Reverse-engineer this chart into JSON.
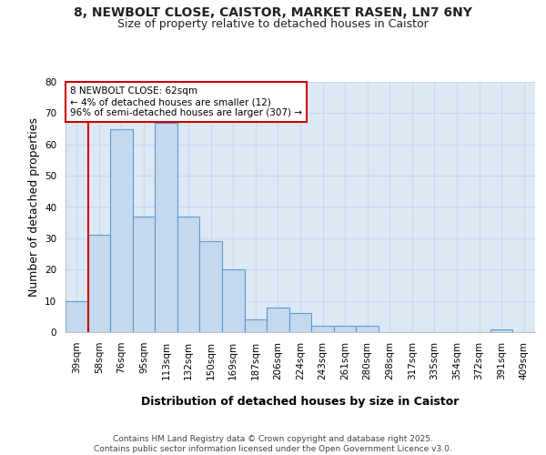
{
  "title1": "8, NEWBOLT CLOSE, CAISTOR, MARKET RASEN, LN7 6NY",
  "title2": "Size of property relative to detached houses in Caistor",
  "xlabel": "Distribution of detached houses by size in Caistor",
  "ylabel": "Number of detached properties",
  "categories": [
    "39sqm",
    "58sqm",
    "76sqm",
    "95sqm",
    "113sqm",
    "132sqm",
    "150sqm",
    "169sqm",
    "187sqm",
    "206sqm",
    "224sqm",
    "243sqm",
    "261sqm",
    "280sqm",
    "298sqm",
    "317sqm",
    "335sqm",
    "354sqm",
    "372sqm",
    "391sqm",
    "409sqm"
  ],
  "values": [
    10,
    31,
    65,
    37,
    67,
    37,
    29,
    20,
    4,
    8,
    6,
    2,
    2,
    2,
    0,
    0,
    0,
    0,
    0,
    1,
    0
  ],
  "bar_color": "#c5d8ed",
  "bar_edge_color": "#5b9bd5",
  "subject_bin_index": 1,
  "subject_line_color": "#cc0000",
  "annotation_text": "8 NEWBOLT CLOSE: 62sqm\n← 4% of detached houses are smaller (12)\n96% of semi-detached houses are larger (307) →",
  "annotation_box_color": "#ffffff",
  "annotation_box_edge_color": "#cc0000",
  "ylim": [
    0,
    80
  ],
  "yticks": [
    0,
    10,
    20,
    30,
    40,
    50,
    60,
    70,
    80
  ],
  "background_color": "#dce9f5",
  "plot_bg_color": "#ffffff",
  "grid_color": "#c8d8e8",
  "footer_text": "Contains HM Land Registry data © Crown copyright and database right 2025.\nContains public sector information licensed under the Open Government Licence v3.0.",
  "title_fontsize": 10,
  "subtitle_fontsize": 9,
  "axis_label_fontsize": 9,
  "tick_fontsize": 7.5,
  "annotation_fontsize": 7.5,
  "footer_fontsize": 6.5
}
